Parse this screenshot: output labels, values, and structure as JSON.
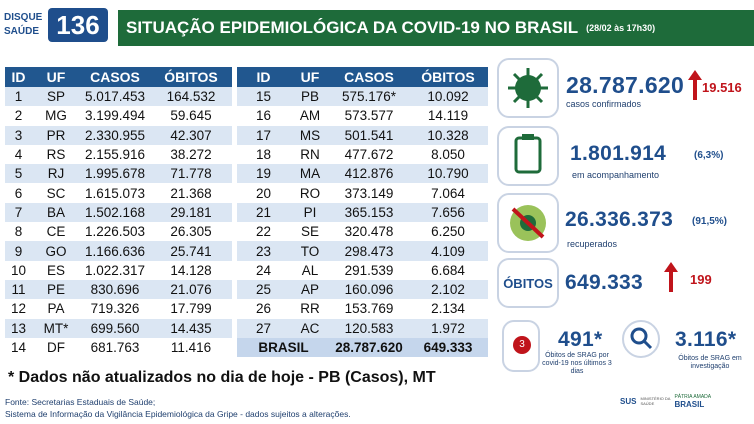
{
  "logo": {
    "line1": "DISQUE",
    "line2": "SAÚDE",
    "number": "136"
  },
  "header": {
    "title": "SITUAÇÃO EPIDEMIOLÓGICA DA COVID-19 NO BRASIL",
    "date": "(28/02 às 17h30)"
  },
  "table_left": {
    "columns": [
      "ID",
      "UF",
      "CASOS",
      "ÓBITOS"
    ],
    "rows": [
      [
        "1",
        "SP",
        "5.017.453",
        "164.532"
      ],
      [
        "2",
        "MG",
        "3.199.494",
        "59.645"
      ],
      [
        "3",
        "PR",
        "2.330.955",
        "42.307"
      ],
      [
        "4",
        "RS",
        "2.155.916",
        "38.272"
      ],
      [
        "5",
        "RJ",
        "1.995.678",
        "71.778"
      ],
      [
        "6",
        "SC",
        "1.615.073",
        "21.368"
      ],
      [
        "7",
        "BA",
        "1.502.168",
        "29.181"
      ],
      [
        "8",
        "CE",
        "1.226.503",
        "26.305"
      ],
      [
        "9",
        "GO",
        "1.166.636",
        "25.741"
      ],
      [
        "10",
        "ES",
        "1.022.317",
        "14.128"
      ],
      [
        "11",
        "PE",
        "830.696",
        "21.076"
      ],
      [
        "12",
        "PA",
        "719.326",
        "17.799"
      ],
      [
        "13",
        "MT*",
        "699.560",
        "14.435"
      ],
      [
        "14",
        "DF",
        "681.763",
        "11.416"
      ]
    ]
  },
  "table_right": {
    "columns": [
      "ID",
      "UF",
      "CASOS",
      "ÓBITOS"
    ],
    "rows": [
      [
        "15",
        "PB",
        "575.176*",
        "10.092"
      ],
      [
        "16",
        "AM",
        "573.577",
        "14.119"
      ],
      [
        "17",
        "MS",
        "501.541",
        "10.328"
      ],
      [
        "18",
        "RN",
        "477.672",
        "8.050"
      ],
      [
        "19",
        "MA",
        "412.876",
        "10.790"
      ],
      [
        "20",
        "RO",
        "373.149",
        "7.064"
      ],
      [
        "21",
        "PI",
        "365.153",
        "7.656"
      ],
      [
        "22",
        "SE",
        "320.478",
        "6.250"
      ],
      [
        "23",
        "TO",
        "298.473",
        "4.109"
      ],
      [
        "24",
        "AL",
        "291.539",
        "6.684"
      ],
      [
        "25",
        "AP",
        "160.096",
        "2.102"
      ],
      [
        "26",
        "RR",
        "153.769",
        "2.134"
      ],
      [
        "27",
        "AC",
        "120.583",
        "1.972"
      ]
    ],
    "total": [
      "BRASIL",
      "28.787.620",
      "649.333"
    ]
  },
  "cards": {
    "confirmed": {
      "value": "28.787.620",
      "label": "casos confirmados",
      "change": "19.516"
    },
    "monitoring": {
      "value": "1.801.914",
      "percent": "(6,3%)",
      "label": "em acompanhamento"
    },
    "recovered": {
      "value": "26.336.373",
      "percent": "(91,5%)",
      "label": "recuperados"
    },
    "deaths": {
      "title": "ÓBITOS",
      "value": "649.333",
      "change": "199"
    },
    "srag_recent": {
      "value": "491*",
      "label": "Óbitos de SRAG por covid-19 nos últimos 3 dias",
      "icon": "3"
    },
    "srag_investigation": {
      "value": "3.116*",
      "label": "Óbitos de SRAG em investigação"
    }
  },
  "footnote": "* Dados não atualizados no dia de hoje - PB (Casos), MT",
  "source": {
    "line1": "Fonte: Secretarias Estaduais de Saúde;",
    "line2": "Sistema de Informação da Vigilância Epidemiológica da Gripe - dados sujeitos a alterações."
  },
  "footer_logos": {
    "sus": "SUS",
    "ministry": "MINISTÉRIO DA SAÚDE",
    "motto": "PÁTRIA AMADA",
    "country": "BRASIL"
  }
}
